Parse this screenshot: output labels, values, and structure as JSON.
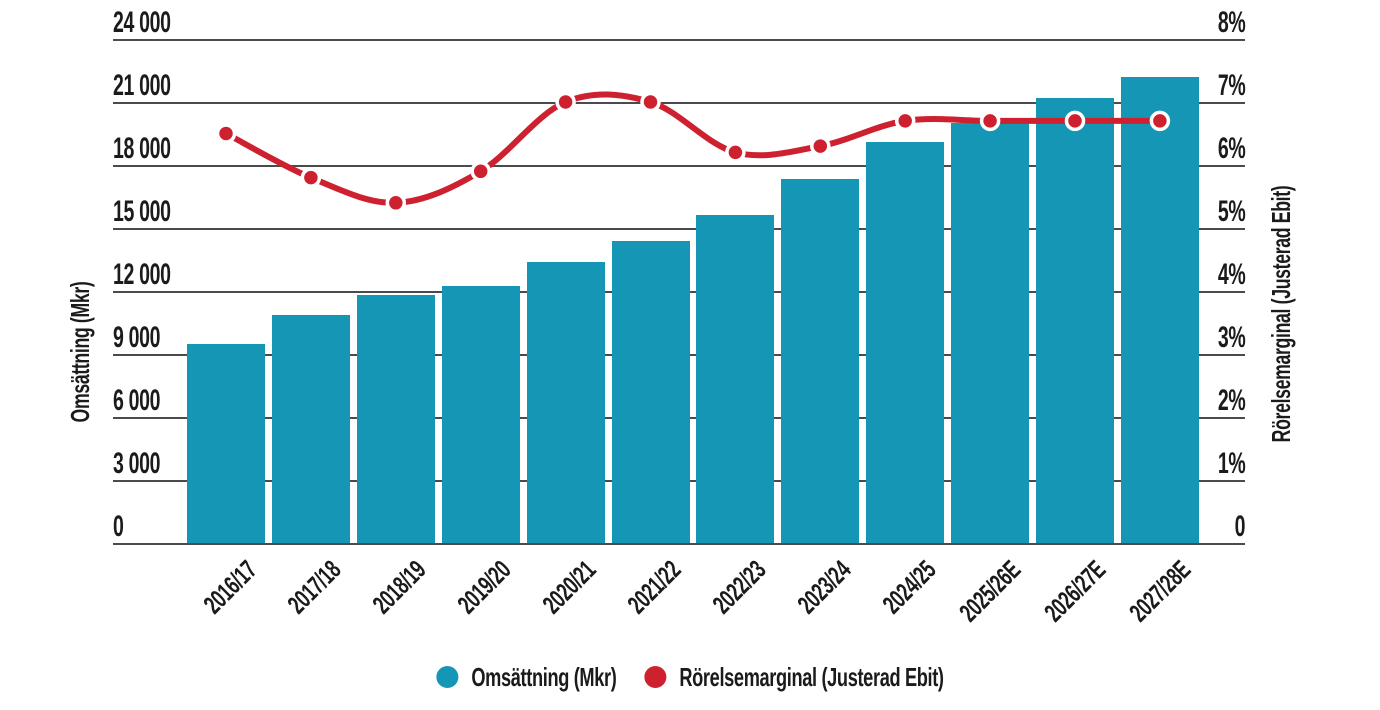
{
  "chart_data": {
    "type": "combo-bar-line",
    "categories": [
      "2016/17",
      "2017/18",
      "2018/19",
      "2019/20",
      "2020/21",
      "2021/22",
      "2022/23",
      "2023/24",
      "2024/25",
      "2025/26E",
      "2026/27E",
      "2027/28E"
    ],
    "series": [
      {
        "name": "Omsättning (Mkr)",
        "type": "bar",
        "axis": "left",
        "color": "#1596B5",
        "values": [
          9500,
          10850,
          11800,
          12250,
          13400,
          14400,
          15600,
          17350,
          19100,
          20000,
          21200,
          22200
        ]
      },
      {
        "name": "Rörelsemarginal (Justerad Ebit)",
        "type": "line",
        "axis": "right",
        "color": "#CE2130",
        "marker_stroke": "#FFFFFF",
        "values": [
          6.5,
          5.8,
          5.4,
          5.9,
          7.0,
          7.0,
          6.2,
          6.3,
          6.7,
          6.7,
          6.7,
          6.7
        ]
      }
    ],
    "left_axis": {
      "title": "Omsättning (Mkr)",
      "min": 0,
      "max": 24000,
      "step": 3000,
      "tick_labels": [
        "24 000",
        "21 000",
        "18 000",
        "15 000",
        "12 000",
        "9 000",
        "6 000",
        "3 000",
        "0"
      ]
    },
    "right_axis": {
      "title": "Rörelsemarginal (Justerad Ebit)",
      "min": 0,
      "max": 8,
      "step": 1,
      "tick_labels": [
        "8%",
        "7%",
        "6%",
        "5%",
        "4%",
        "3%",
        "2%",
        "1%",
        "0"
      ]
    },
    "legend": [
      {
        "label": "Omsättning (Mkr)",
        "color": "#1596B5"
      },
      {
        "label": "Rörelsemarginal (Justerad Ebit)",
        "color": "#CE2130"
      }
    ],
    "grid": true,
    "legend_position": "bottom-center",
    "colors": {
      "grid_line": "#4B4B4D",
      "text": "#1B1B1B",
      "background": "#FFFFFF"
    }
  }
}
